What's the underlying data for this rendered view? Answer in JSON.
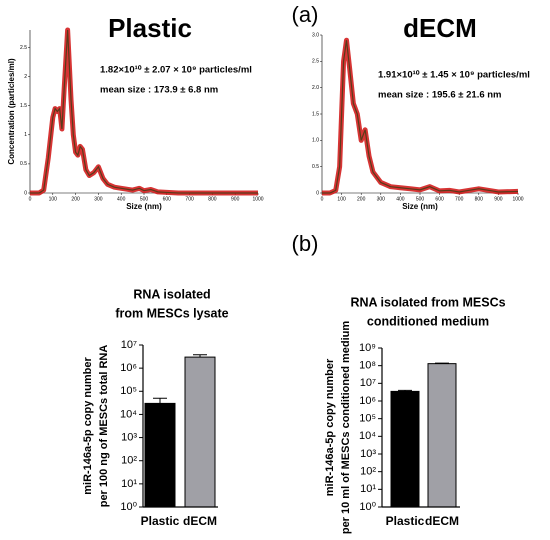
{
  "panel_labels": [
    "(a)",
    "(b)"
  ],
  "chart_data": [
    {
      "type": "line",
      "title": "Plastic",
      "xlabel": "Size (nm)",
      "ylabel": "Concentration (particles/ml)",
      "annotations": [
        "1.82×10¹⁰ ± 2.07 × 10⁹ particles/ml",
        "mean size : 173.9 ± 6.8 nm"
      ],
      "x": [
        0,
        20,
        40,
        60,
        80,
        100,
        110,
        120,
        130,
        140,
        150,
        165,
        180,
        190,
        200,
        210,
        220,
        230,
        245,
        260,
        280,
        300,
        320,
        340,
        370,
        400,
        450,
        480,
        500,
        530,
        560,
        600,
        650,
        700,
        800,
        900,
        1000
      ],
      "series": [
        {
          "name": "Plastic",
          "color": "#5a3a1a",
          "band_color": "#d01010",
          "values": [
            0,
            0,
            0,
            0.05,
            0.6,
            1.3,
            1.45,
            1.4,
            1.45,
            1.1,
            1.8,
            2.8,
            1.6,
            1.0,
            0.7,
            0.65,
            0.8,
            0.75,
            0.4,
            0.3,
            0.35,
            0.45,
            0.25,
            0.15,
            0.1,
            0.08,
            0.05,
            0.08,
            0.04,
            0.06,
            0.02,
            0.01,
            0,
            0,
            0,
            0,
            0
          ]
        }
      ],
      "xlim": [
        0,
        1000
      ],
      "xticks": [
        0,
        100,
        200,
        300,
        400,
        500,
        600,
        700,
        800,
        900,
        1000
      ],
      "ylim": [
        0,
        2.8
      ],
      "yticks": [
        0,
        0.5,
        1,
        1.5,
        2,
        2.5
      ]
    },
    {
      "type": "line",
      "title": "dECM",
      "xlabel": "Size (nm)",
      "annotations": [
        "1.91×10¹⁰ ± 1.45 × 10⁹ particles/ml",
        "mean size : 195.6 ± 21.6 nm"
      ],
      "x": [
        0,
        40,
        70,
        90,
        100,
        110,
        125,
        140,
        160,
        180,
        200,
        220,
        240,
        260,
        300,
        350,
        400,
        450,
        500,
        550,
        600,
        650,
        700,
        800,
        900,
        1000
      ],
      "series": [
        {
          "name": "dECM",
          "color": "#5a3a1a",
          "band_color": "#d01010",
          "values": [
            0,
            0,
            0.05,
            0.5,
            1.5,
            2.5,
            2.9,
            2.4,
            1.7,
            1.5,
            1.0,
            1.2,
            0.7,
            0.4,
            0.2,
            0.12,
            0.1,
            0.08,
            0.06,
            0.12,
            0.04,
            0.05,
            0.02,
            0.08,
            0.02,
            0.03
          ]
        }
      ],
      "xlim": [
        0,
        1000
      ],
      "xticks": [
        0,
        100,
        200,
        300,
        400,
        500,
        600,
        700,
        800,
        900,
        1000
      ],
      "ylim": [
        0,
        3.0
      ],
      "yticks": [
        0,
        {
          "value": 0.5,
          "label": "0.5"
        },
        {
          "value": 1,
          "label": "1.0"
        },
        {
          "value": 1.5,
          "label": "1.5"
        },
        {
          "value": 2,
          "label": "2.0"
        },
        {
          "value": 2.5,
          "label": "2.5"
        },
        {
          "value": 3,
          "label": "3.0"
        }
      ]
    },
    {
      "type": "bar",
      "title": [
        "RNA isolated",
        "from MESCs lysate"
      ],
      "ylabel": [
        "miR-146a-5p copy number",
        "per 100 ng of MESCs total RNA"
      ],
      "categories": [
        "Plastic",
        "dECM"
      ],
      "values": [
        30000,
        3000000
      ],
      "errors": [
        20000,
        800000
      ],
      "colors": [
        "#000000",
        "#a0a0a6"
      ],
      "log_scale": true,
      "ylim": [
        1,
        10000000
      ],
      "yticks": [
        {
          "value": 1,
          "label": "10⁰"
        },
        {
          "value": 10,
          "label": "10¹"
        },
        {
          "value": 100,
          "label": "10²"
        },
        {
          "value": 1000,
          "label": "10³"
        },
        {
          "value": 10000,
          "label": "10⁴"
        },
        {
          "value": 100000,
          "label": "10⁵"
        },
        {
          "value": 1000000,
          "label": "10⁶"
        },
        {
          "value": 10000000,
          "label": "10⁷"
        }
      ]
    },
    {
      "type": "bar",
      "title": [
        "RNA isolated from MESCs",
        "conditioned medium"
      ],
      "ylabel": [
        "miR-146a-5p copy number",
        "per 10 ml of MESCs conditioned medium"
      ],
      "categories": [
        "Plastic",
        "dECM"
      ],
      "values": [
        3500000,
        130000000
      ],
      "errors": [
        500000,
        10000000
      ],
      "colors": [
        "#000000",
        "#a0a0a6"
      ],
      "log_scale": true,
      "ylim": [
        1,
        1000000000
      ],
      "yticks": [
        {
          "value": 1,
          "label": "10⁰"
        },
        {
          "value": 10,
          "label": "10¹"
        },
        {
          "value": 100,
          "label": "10²"
        },
        {
          "value": 1000,
          "label": "10³"
        },
        {
          "value": 10000,
          "label": "10⁴"
        },
        {
          "value": 100000,
          "label": "10⁵"
        },
        {
          "value": 1000000,
          "label": "10⁶"
        },
        {
          "value": 10000000,
          "label": "10⁷"
        },
        {
          "value": 100000000,
          "label": "10⁸"
        },
        {
          "value": 1000000000,
          "label": "10⁹"
        }
      ]
    }
  ]
}
